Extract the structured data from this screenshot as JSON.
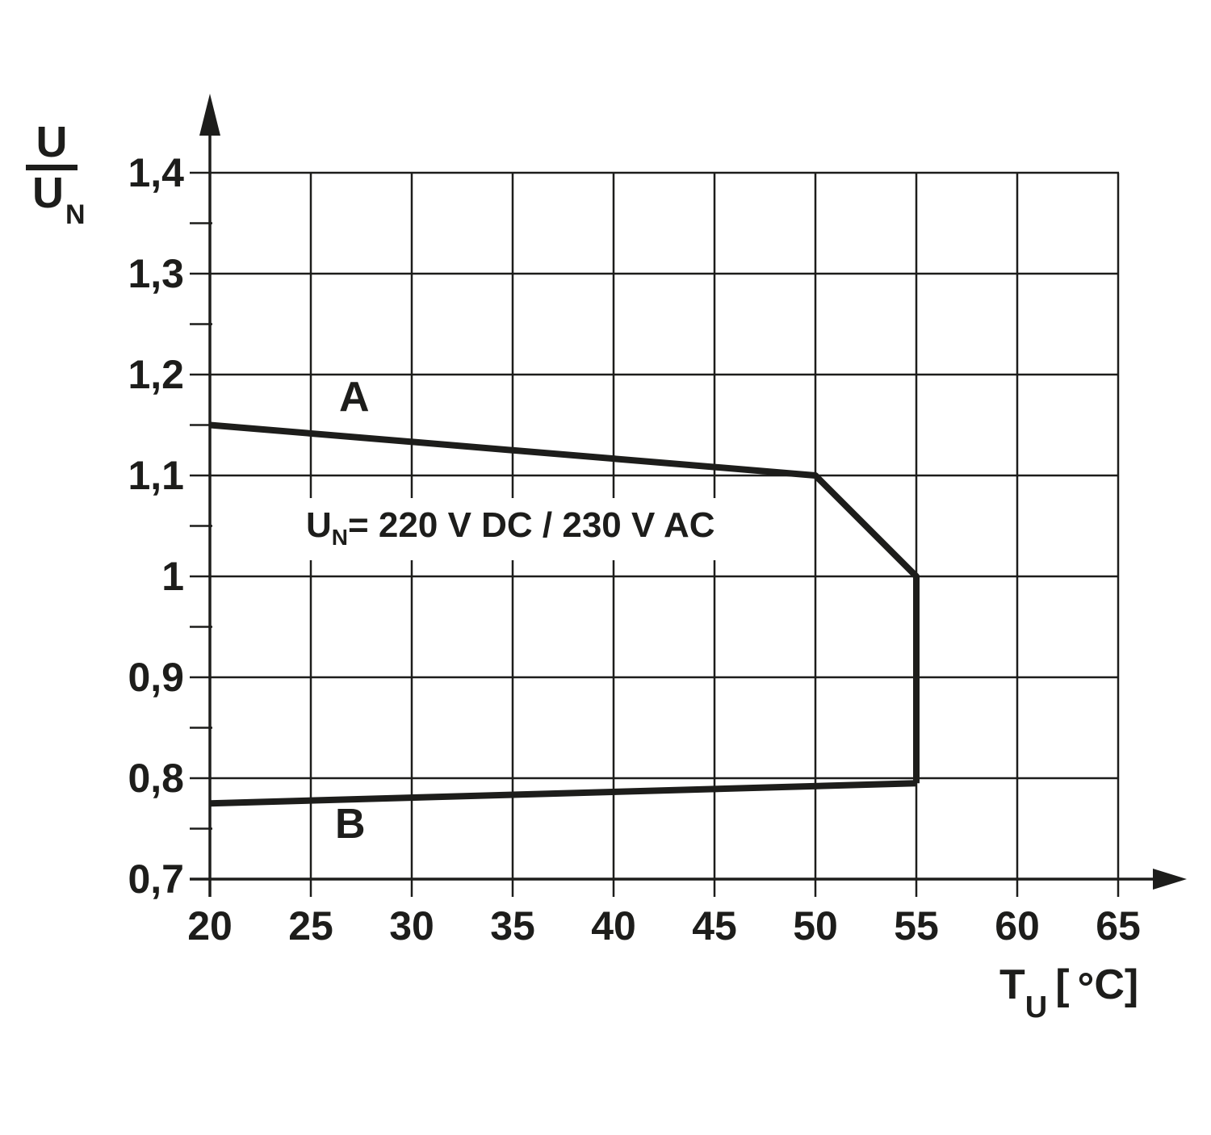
{
  "labels": {
    "curve_a": "A",
    "curve_b": "B",
    "annotation": {
      "base": "U",
      "sub": "N",
      "rest": "= 220 V DC / 230 V AC"
    },
    "x_axis": {
      "base": "T",
      "sub": "U",
      "open": "[",
      "degree": "°",
      "close": "C]"
    },
    "y_axis": {
      "numerator": "U",
      "denominator": "U",
      "denominator_sub": "N"
    }
  },
  "colors": {
    "ink": "#1d1d1b",
    "background": "#ffffff"
  },
  "chart_data": {
    "type": "line",
    "title": "",
    "xlabel": "TU [°C]",
    "ylabel": "U/UN",
    "xlim": [
      20,
      65
    ],
    "ylim": [
      0.7,
      1.4
    ],
    "x_tick_step": 5,
    "y_tick_step": 0.1,
    "y_minor_tick_step": 0.05,
    "grid": true,
    "legend": "inline curve labels A and B",
    "annotation_text": "UN = 220 V DC / 230 V AC",
    "x_ticks": [
      {
        "v": 20,
        "label": "20"
      },
      {
        "v": 25,
        "label": "25"
      },
      {
        "v": 30,
        "label": "30"
      },
      {
        "v": 35,
        "label": "35"
      },
      {
        "v": 40,
        "label": "40"
      },
      {
        "v": 45,
        "label": "45"
      },
      {
        "v": 50,
        "label": "50"
      },
      {
        "v": 55,
        "label": "55"
      },
      {
        "v": 60,
        "label": "60"
      },
      {
        "v": 65,
        "label": "65"
      }
    ],
    "y_ticks": [
      {
        "v": 1.4,
        "label": "1,4"
      },
      {
        "v": 1.3,
        "label": "1,3"
      },
      {
        "v": 1.2,
        "label": "1,2"
      },
      {
        "v": 1.1,
        "label": "1,1"
      },
      {
        "v": 1.0,
        "label": "1"
      },
      {
        "v": 0.9,
        "label": "0,9"
      },
      {
        "v": 0.8,
        "label": "0,8"
      },
      {
        "v": 0.7,
        "label": "0,7"
      }
    ],
    "y_minor_ticks": [
      0.75,
      0.85,
      0.95,
      1.05,
      1.15,
      1.25,
      1.35
    ],
    "series": [
      {
        "name": "A",
        "points": [
          [
            20,
            1.15
          ],
          [
            50,
            1.1
          ],
          [
            55,
            1.0
          ],
          [
            55,
            0.795
          ]
        ]
      },
      {
        "name": "B",
        "points": [
          [
            20,
            0.775
          ],
          [
            55,
            0.795
          ]
        ]
      }
    ]
  }
}
